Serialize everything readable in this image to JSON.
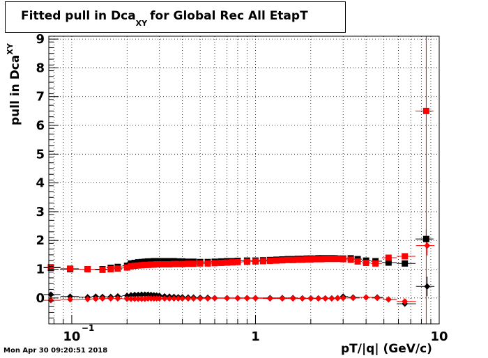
{
  "chart_data": {
    "type": "scatter",
    "title_main": "Fitted pull in Dca",
    "title_sub": "XY",
    "title_rest": "for Global Rec All EtapT",
    "ylabel_main": "pull in Dca",
    "ylabel_sub": "XY",
    "xlabel": "pT/|q| (GeV/c)",
    "timestamp": "Mon Apr 30 09:20:51 2018",
    "x_scale": "log",
    "xlim": [
      0.075,
      10
    ],
    "ylim": [
      -0.9,
      9.1
    ],
    "grid": true,
    "x_tick_labels": [
      {
        "value": 0.1,
        "base": "10",
        "exp": "−1"
      },
      {
        "value": 1,
        "base": "1",
        "exp": ""
      },
      {
        "value": 10,
        "base": "10",
        "exp": ""
      }
    ],
    "y_ticks": [
      0,
      1,
      2,
      3,
      4,
      5,
      6,
      7,
      8,
      9
    ],
    "series": [
      {
        "marker": "square",
        "color": "#000000",
        "x": [
          0.077,
          0.098,
          0.122,
          0.147,
          0.163,
          0.178,
          0.2,
          0.21,
          0.22,
          0.23,
          0.24,
          0.25,
          0.26,
          0.27,
          0.28,
          0.29,
          0.3,
          0.32,
          0.34,
          0.36,
          0.38,
          0.4,
          0.43,
          0.46,
          0.5,
          0.55,
          0.6,
          0.65,
          0.7,
          0.75,
          0.8,
          0.9,
          1.0,
          1.1,
          1.2,
          1.3,
          1.4,
          1.5,
          1.6,
          1.7,
          1.8,
          1.9,
          2.0,
          2.1,
          2.2,
          2.3,
          2.4,
          2.5,
          2.6,
          2.7,
          2.8,
          3.0,
          3.3,
          3.6,
          4.0,
          4.5,
          5.3,
          6.5,
          8.5
        ],
        "y": [
          1.05,
          1.0,
          1.0,
          1.0,
          1.05,
          1.08,
          1.12,
          1.2,
          1.22,
          1.24,
          1.25,
          1.26,
          1.27,
          1.27,
          1.28,
          1.28,
          1.28,
          1.28,
          1.28,
          1.28,
          1.27,
          1.27,
          1.26,
          1.26,
          1.25,
          1.25,
          1.26,
          1.27,
          1.28,
          1.28,
          1.29,
          1.3,
          1.3,
          1.31,
          1.32,
          1.33,
          1.34,
          1.35,
          1.35,
          1.36,
          1.36,
          1.37,
          1.37,
          1.37,
          1.38,
          1.38,
          1.38,
          1.38,
          1.38,
          1.38,
          1.37,
          1.37,
          1.38,
          1.35,
          1.3,
          1.28,
          1.23,
          1.2,
          2.05
        ]
      },
      {
        "marker": "square",
        "color": "#ff0000",
        "x": [
          0.077,
          0.098,
          0.122,
          0.147,
          0.163,
          0.178,
          0.2,
          0.21,
          0.22,
          0.23,
          0.24,
          0.25,
          0.26,
          0.27,
          0.28,
          0.29,
          0.3,
          0.32,
          0.34,
          0.36,
          0.38,
          0.4,
          0.43,
          0.46,
          0.5,
          0.55,
          0.6,
          0.65,
          0.7,
          0.75,
          0.8,
          0.9,
          1.0,
          1.1,
          1.2,
          1.3,
          1.4,
          1.5,
          1.6,
          1.7,
          1.8,
          1.9,
          2.0,
          2.1,
          2.2,
          2.3,
          2.4,
          2.5,
          2.6,
          2.7,
          2.8,
          3.0,
          3.3,
          3.6,
          4.0,
          4.5,
          5.3,
          6.5,
          8.5
        ],
        "y": [
          1.07,
          1.02,
          1.0,
          0.98,
          1.0,
          1.02,
          1.06,
          1.1,
          1.12,
          1.13,
          1.14,
          1.15,
          1.15,
          1.16,
          1.16,
          1.17,
          1.17,
          1.17,
          1.17,
          1.18,
          1.18,
          1.18,
          1.19,
          1.19,
          1.2,
          1.2,
          1.21,
          1.22,
          1.23,
          1.24,
          1.25,
          1.26,
          1.27,
          1.28,
          1.29,
          1.3,
          1.31,
          1.32,
          1.32,
          1.33,
          1.33,
          1.34,
          1.34,
          1.35,
          1.35,
          1.35,
          1.36,
          1.36,
          1.36,
          1.36,
          1.36,
          1.35,
          1.33,
          1.27,
          1.22,
          1.2,
          1.4,
          1.45,
          6.5
        ]
      },
      {
        "marker": "diamond",
        "color": "#000000",
        "x": [
          0.077,
          0.098,
          0.122,
          0.135,
          0.147,
          0.163,
          0.178,
          0.2,
          0.21,
          0.22,
          0.23,
          0.24,
          0.25,
          0.26,
          0.27,
          0.28,
          0.29,
          0.3,
          0.32,
          0.34,
          0.36,
          0.38,
          0.4,
          0.43,
          0.46,
          0.5,
          0.55,
          0.6,
          0.7,
          0.8,
          0.9,
          1.0,
          1.2,
          1.4,
          1.6,
          1.8,
          2.0,
          2.2,
          2.4,
          2.6,
          2.8,
          3.0,
          3.4,
          4.0,
          4.6,
          5.3,
          6.5,
          8.6
        ],
        "y": [
          0.12,
          0.05,
          0.03,
          0.05,
          0.04,
          0.04,
          0.06,
          0.08,
          0.1,
          0.11,
          0.11,
          0.12,
          0.12,
          0.12,
          0.11,
          0.1,
          0.09,
          0.08,
          0.06,
          0.05,
          0.04,
          0.03,
          0.03,
          0.02,
          0.02,
          0.01,
          0.01,
          0.0,
          0.0,
          0.0,
          0.0,
          0.0,
          0.0,
          0.0,
          0.0,
          -0.01,
          -0.01,
          -0.01,
          -0.01,
          -0.01,
          0.0,
          0.05,
          0.02,
          0.02,
          0.02,
          -0.05,
          -0.2,
          0.4
        ]
      },
      {
        "marker": "diamond",
        "color": "#ff0000",
        "x": [
          0.077,
          0.098,
          0.122,
          0.135,
          0.147,
          0.163,
          0.178,
          0.2,
          0.21,
          0.22,
          0.23,
          0.24,
          0.25,
          0.26,
          0.27,
          0.28,
          0.29,
          0.3,
          0.32,
          0.34,
          0.36,
          0.38,
          0.4,
          0.43,
          0.46,
          0.5,
          0.55,
          0.6,
          0.7,
          0.8,
          0.9,
          1.0,
          1.2,
          1.4,
          1.6,
          1.8,
          2.0,
          2.2,
          2.4,
          2.6,
          2.8,
          3.0,
          3.4,
          4.0,
          4.6,
          5.3,
          6.5,
          8.6
        ],
        "y": [
          -0.08,
          -0.05,
          -0.04,
          -0.03,
          -0.02,
          -0.02,
          -0.02,
          -0.03,
          -0.03,
          -0.03,
          -0.03,
          -0.03,
          -0.03,
          -0.02,
          -0.02,
          -0.02,
          -0.02,
          -0.02,
          -0.02,
          -0.02,
          -0.02,
          -0.02,
          -0.02,
          -0.02,
          -0.02,
          -0.02,
          -0.02,
          -0.01,
          -0.01,
          -0.01,
          -0.01,
          -0.01,
          -0.02,
          -0.02,
          -0.02,
          -0.02,
          -0.02,
          -0.02,
          -0.02,
          -0.02,
          -0.01,
          0.0,
          0.0,
          0.02,
          0.0,
          -0.05,
          -0.12,
          1.82
        ]
      }
    ]
  }
}
